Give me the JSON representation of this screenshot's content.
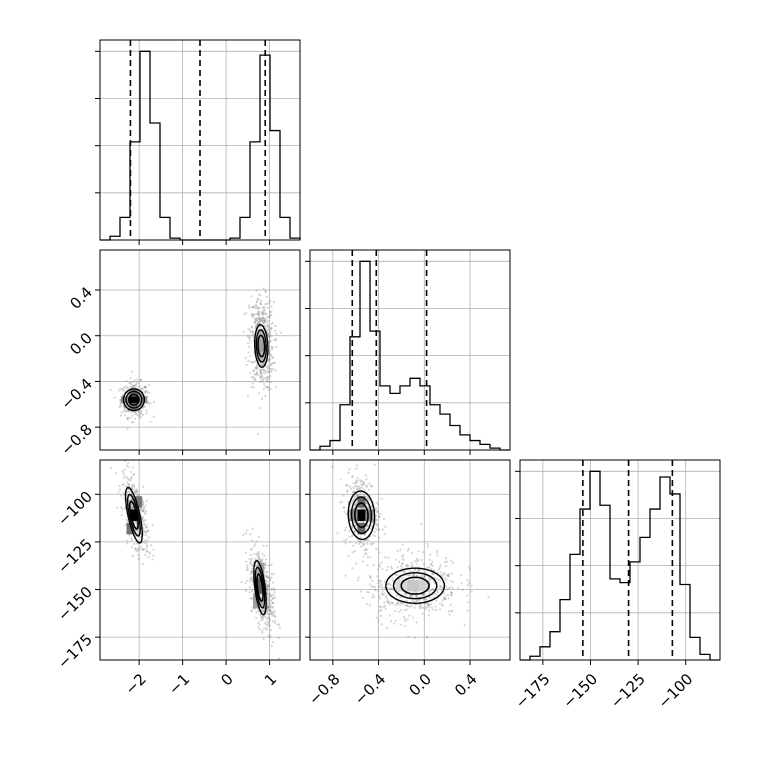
{
  "chart_data": {
    "type": "corner",
    "grid": true,
    "parameters": [
      {
        "range": [
          -2.9,
          1.7
        ],
        "ticks": [
          -2,
          -1,
          0,
          1
        ],
        "tick_labels": [
          "−2",
          "−1",
          "0",
          "1"
        ]
      },
      {
        "range": [
          -1.0,
          0.75
        ],
        "ticks": [
          -0.8,
          -0.4,
          0.0,
          0.4
        ],
        "tick_labels": [
          "−0.8",
          "−0.4",
          "0.0",
          "0.4"
        ]
      },
      {
        "range": [
          -187,
          -82
        ],
        "ticks": [
          -175,
          -150,
          -125,
          -100
        ],
        "tick_labels": [
          "−175",
          "−150",
          "−125",
          "−100"
        ]
      }
    ],
    "marginals": [
      {
        "param": 0,
        "bin_edges": [
          -2.9,
          -2.67,
          -2.44,
          -2.21,
          -1.98,
          -1.75,
          -1.52,
          -1.29,
          -1.06,
          -0.83,
          -0.6,
          -0.37,
          -0.14,
          0.09,
          0.32,
          0.55,
          0.78,
          1.01,
          1.24,
          1.47,
          1.7
        ],
        "counts": [
          0,
          0.02,
          0.12,
          0.52,
          1.0,
          0.62,
          0.12,
          0.01,
          0,
          0,
          0,
          0,
          0,
          0.01,
          0.12,
          0.52,
          0.98,
          0.58,
          0.12,
          0.01
        ],
        "ymax": 1.06,
        "quantiles": [
          -2.2,
          -0.6,
          0.9
        ]
      },
      {
        "param": 1,
        "bin_edges": [
          -1.0,
          -0.9125,
          -0.825,
          -0.7375,
          -0.65,
          -0.5625,
          -0.475,
          -0.3875,
          -0.3,
          -0.2125,
          -0.125,
          -0.0375,
          0.05,
          0.1375,
          0.225,
          0.3125,
          0.4,
          0.4875,
          0.575,
          0.6625,
          0.75
        ],
        "counts": [
          0,
          0.02,
          0.05,
          0.24,
          0.6,
          1.0,
          0.63,
          0.34,
          0.3,
          0.34,
          0.38,
          0.34,
          0.24,
          0.19,
          0.13,
          0.08,
          0.05,
          0.03,
          0.01,
          0
        ],
        "ymax": 1.06,
        "quantiles": [
          -0.63,
          -0.42,
          0.02
        ]
      },
      {
        "param": 2,
        "bin_edges": [
          -187,
          -181.75,
          -176.5,
          -171.25,
          -166,
          -160.75,
          -155.5,
          -150.25,
          -145,
          -139.75,
          -134.5,
          -129.25,
          -124,
          -118.75,
          -113.5,
          -108.25,
          -103,
          -97.75,
          -92.5,
          -87.25,
          -82
        ],
        "counts": [
          0,
          0.02,
          0.07,
          0.15,
          0.32,
          0.56,
          0.8,
          1.0,
          0.82,
          0.43,
          0.41,
          0.52,
          0.65,
          0.8,
          0.97,
          0.88,
          0.4,
          0.12,
          0.03,
          0
        ],
        "ymax": 1.06,
        "quantiles": [
          -154,
          -130,
          -107
        ]
      }
    ],
    "joint": [
      {
        "x": 0,
        "y": 1,
        "samples": [
          {
            "cx": -2.1,
            "cy": -0.56,
            "sx": 0.16,
            "sy": 0.075,
            "rho": 0.0,
            "n": 380
          },
          {
            "cx": 0.82,
            "cy": -0.07,
            "sx": 0.14,
            "sy": 0.2,
            "rho": -0.1,
            "n": 520
          }
        ],
        "contours": [
          {
            "cx": -2.12,
            "cy": -0.56,
            "rx": 0.24,
            "ry": 0.095,
            "rho": 0.0,
            "levels": [
              1.0,
              1.55,
              2.05
            ]
          },
          {
            "cx": 0.81,
            "cy": -0.09,
            "rx": 0.16,
            "ry": 0.19,
            "rho": -0.1,
            "levels": [
              1.0,
              1.5,
              2.0
            ]
          }
        ],
        "cells": [
          {
            "x": -2.12,
            "y": -0.56,
            "dx": 0.2,
            "dy": 0.06,
            "shade": 0.0
          },
          {
            "x": -2.12,
            "y": -0.5,
            "dx": 0.2,
            "dy": 0.06,
            "shade": 0.45
          },
          {
            "x": -2.12,
            "y": -0.62,
            "dx": 0.2,
            "dy": 0.06,
            "shade": 0.45
          },
          {
            "x": -1.92,
            "y": -0.56,
            "dx": 0.2,
            "dy": 0.06,
            "shade": 0.55
          },
          {
            "x": -2.32,
            "y": -0.56,
            "dx": 0.2,
            "dy": 0.06,
            "shade": 0.55
          },
          {
            "x": 0.8,
            "y": -0.09,
            "dx": 0.16,
            "dy": 0.1,
            "shade": 0.62
          },
          {
            "x": 0.8,
            "y": 0.01,
            "dx": 0.16,
            "dy": 0.1,
            "shade": 0.72
          },
          {
            "x": 0.8,
            "y": -0.19,
            "dx": 0.16,
            "dy": 0.1,
            "shade": 0.72
          }
        ]
      },
      {
        "x": 0,
        "y": 2,
        "samples": [
          {
            "cx": -2.08,
            "cy": -110,
            "sx": 0.15,
            "sy": 10,
            "rho": -0.6,
            "n": 380
          },
          {
            "cx": 0.82,
            "cy": -150,
            "sx": 0.14,
            "sy": 11,
            "rho": -0.5,
            "n": 520
          }
        ],
        "contours": [
          {
            "cx": -2.12,
            "cy": -111,
            "rx": 0.22,
            "ry": 14,
            "rho": -0.6,
            "levels": [
              1.0,
              1.5,
              2.0
            ]
          },
          {
            "cx": 0.78,
            "cy": -149,
            "rx": 0.16,
            "ry": 14,
            "rho": -0.45,
            "levels": [
              1.0,
              1.5,
              2.0
            ]
          }
        ],
        "cells": [
          {
            "x": -2.12,
            "y": -111,
            "dx": 0.18,
            "dy": 6,
            "shade": 0.0
          },
          {
            "x": -2.02,
            "y": -104,
            "dx": 0.18,
            "dy": 6,
            "shade": 0.45
          },
          {
            "x": -2.2,
            "y": -118,
            "dx": 0.18,
            "dy": 6,
            "shade": 0.45
          },
          {
            "x": 0.75,
            "y": -148,
            "dx": 0.16,
            "dy": 8,
            "shade": 0.35
          },
          {
            "x": 0.8,
            "y": -140,
            "dx": 0.16,
            "dy": 8,
            "shade": 0.62
          },
          {
            "x": 0.7,
            "y": -156,
            "dx": 0.16,
            "dy": 8,
            "shade": 0.62
          }
        ]
      },
      {
        "x": 1,
        "y": 2,
        "samples": [
          {
            "cx": -0.55,
            "cy": -110,
            "sx": 0.075,
            "sy": 10,
            "rho": -0.1,
            "n": 380
          },
          {
            "cx": -0.1,
            "cy": -148,
            "sx": 0.2,
            "sy": 9,
            "rho": 0.1,
            "n": 520
          }
        ],
        "contours": [
          {
            "cx": -0.55,
            "cy": -111,
            "rx": 0.12,
            "ry": 13,
            "rho": -0.05,
            "levels": [
              1.0,
              1.5,
              2.0
            ]
          },
          {
            "cx": -0.08,
            "cy": -148,
            "rx": 0.25,
            "ry": 9,
            "rho": 0.0,
            "levels": [
              1.0,
              1.55,
              2.1
            ]
          }
        ],
        "cells": [
          {
            "x": -0.55,
            "y": -111,
            "dx": 0.07,
            "dy": 6,
            "shade": 0.0
          },
          {
            "x": -0.55,
            "y": -104,
            "dx": 0.07,
            "dy": 6,
            "shade": 0.4
          },
          {
            "x": -0.55,
            "y": -118,
            "dx": 0.07,
            "dy": 6,
            "shade": 0.4
          },
          {
            "x": -0.48,
            "y": -111,
            "dx": 0.07,
            "dy": 6,
            "shade": 0.55
          },
          {
            "x": -0.62,
            "y": -111,
            "dx": 0.07,
            "dy": 6,
            "shade": 0.55
          },
          {
            "x": -0.1,
            "y": -148,
            "dx": 0.1,
            "dy": 6,
            "shade": 0.78
          },
          {
            "x": 0.0,
            "y": -148,
            "dx": 0.1,
            "dy": 6,
            "shade": 0.82
          },
          {
            "x": -0.2,
            "y": -148,
            "dx": 0.1,
            "dy": 6,
            "shade": 0.85
          }
        ]
      }
    ],
    "colors": {
      "line": "#000000",
      "grid": "#b0b0b0",
      "sample": "#8a8a8a"
    }
  }
}
